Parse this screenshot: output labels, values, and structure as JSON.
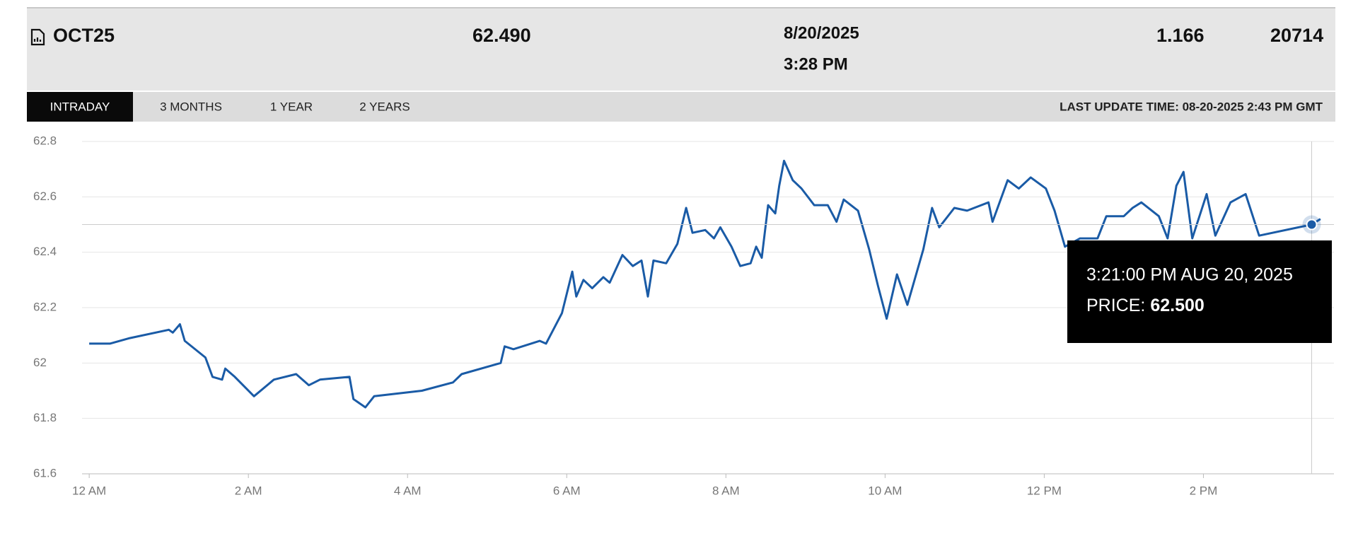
{
  "header": {
    "symbol": "OCT25",
    "last": "62.490",
    "date": "8/20/2025",
    "time": "3:28 PM",
    "change": "1.166",
    "volume": "20714"
  },
  "tabs": [
    "INTRADAY",
    "3 MONTHS",
    "1 YEAR",
    "2 YEARS"
  ],
  "last_update": "LAST UPDATE TIME: 08-20-2025 2:43 PM GMT",
  "tooltip": {
    "time": "3:21:00 PM AUG 20, 2025",
    "label": "PRICE:",
    "price": "62.500"
  },
  "chart_data": {
    "type": "line",
    "color": "#1a5ba6",
    "grid": true,
    "x": [
      0,
      0.26,
      0.51,
      1.0,
      1.05,
      1.14,
      1.2,
      1.46,
      1.55,
      1.67,
      1.71,
      1.83,
      2.07,
      2.32,
      2.6,
      2.76,
      2.9,
      3.27,
      3.32,
      3.47,
      3.58,
      4.18,
      4.57,
      4.68,
      5.17,
      5.22,
      5.33,
      5.66,
      5.74,
      5.94,
      6.07,
      6.12,
      6.21,
      6.32,
      6.46,
      6.54,
      6.7,
      6.83,
      6.94,
      7.02,
      7.09,
      7.25,
      7.39,
      7.5,
      7.58,
      7.74,
      7.85,
      7.93,
      8.07,
      8.18,
      8.31,
      8.38,
      8.45,
      8.53,
      8.62,
      8.67,
      8.73,
      8.84,
      8.95,
      9.11,
      9.28,
      9.39,
      9.48,
      9.66,
      9.8,
      9.91,
      10.02,
      10.15,
      10.28,
      10.48,
      10.59,
      10.68,
      10.87,
      11.03,
      11.3,
      11.35,
      11.54,
      11.68,
      11.83,
      12.02,
      12.13,
      12.26,
      12.45,
      12.67,
      12.78,
      13.0,
      13.11,
      13.22,
      13.44,
      13.55,
      13.66,
      13.75,
      13.86,
      14.04,
      14.15,
      14.34,
      14.53,
      14.7,
      15.36,
      15.47
    ],
    "values": [
      62.07,
      62.07,
      62.09,
      62.12,
      62.11,
      62.14,
      62.08,
      62.02,
      61.95,
      61.94,
      61.98,
      61.95,
      61.88,
      61.94,
      61.96,
      61.92,
      61.94,
      61.95,
      61.87,
      61.84,
      61.88,
      61.9,
      61.93,
      61.96,
      62.0,
      62.06,
      62.05,
      62.08,
      62.07,
      62.18,
      62.33,
      62.24,
      62.3,
      62.27,
      62.31,
      62.29,
      62.39,
      62.35,
      62.37,
      62.24,
      62.37,
      62.36,
      62.43,
      62.56,
      62.47,
      62.48,
      62.45,
      62.49,
      62.42,
      62.35,
      62.36,
      62.42,
      62.38,
      62.57,
      62.54,
      62.64,
      62.73,
      62.66,
      62.63,
      62.57,
      62.57,
      62.51,
      62.59,
      62.55,
      62.41,
      62.28,
      62.16,
      62.32,
      62.21,
      62.41,
      62.56,
      62.49,
      62.56,
      62.55,
      62.58,
      62.51,
      62.66,
      62.63,
      62.67,
      62.63,
      62.55,
      62.42,
      62.45,
      62.45,
      62.53,
      62.53,
      62.56,
      62.58,
      62.53,
      62.45,
      62.64,
      62.69,
      62.45,
      62.61,
      62.46,
      62.58,
      62.61,
      62.46,
      62.5,
      62.52
    ],
    "xlim": [
      -0.09,
      15.64
    ],
    "xticks": [
      {
        "value": 0,
        "label": "12 AM"
      },
      {
        "value": 2,
        "label": "2 AM"
      },
      {
        "value": 4,
        "label": "4 AM"
      },
      {
        "value": 6,
        "label": "6 AM"
      },
      {
        "value": 8,
        "label": "8 AM"
      },
      {
        "value": 10,
        "label": "10 AM"
      },
      {
        "value": 12,
        "label": "12 PM"
      },
      {
        "value": 14,
        "label": "2 PM"
      }
    ],
    "ylim": [
      61.6,
      62.8
    ],
    "yticks": [
      61.6,
      61.8,
      62,
      62.2,
      62.4,
      62.6,
      62.8
    ]
  }
}
